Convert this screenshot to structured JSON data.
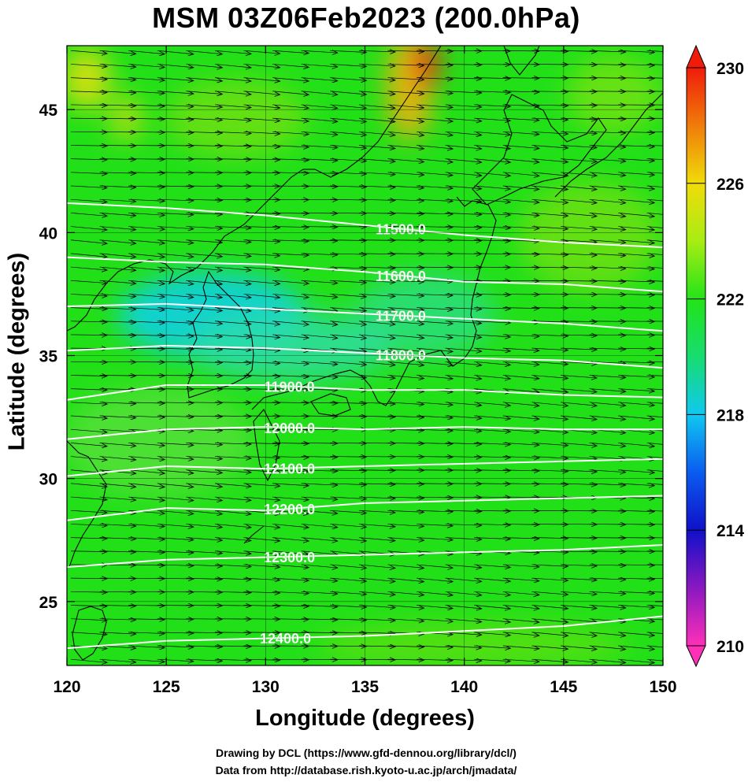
{
  "title": "MSM 03Z06Feb2023 (200.0hPa)",
  "xaxis": {
    "label": "Longitude (degrees)",
    "ticks": [
      120,
      125,
      130,
      135,
      140,
      145,
      150
    ],
    "range": [
      120,
      150
    ]
  },
  "yaxis": {
    "label": "Latitude  (degrees)",
    "ticks": [
      25,
      30,
      35,
      40,
      45
    ],
    "range": [
      22.4,
      47.6
    ]
  },
  "colorbar": {
    "ticks": [
      230,
      226,
      222,
      218,
      214,
      210
    ],
    "range": [
      210,
      230
    ],
    "colors": [
      "#ff30b8",
      "#8a18c0",
      "#1010c8",
      "#0a5cf0",
      "#10c8f0",
      "#18dc70",
      "#22e418",
      "#a8ec14",
      "#f0dc0a",
      "#f07c0a",
      "#f01c0a"
    ]
  },
  "contours": [
    {
      "label": "11500.0",
      "label_lon": 136.8,
      "pts": [
        [
          120,
          41.2
        ],
        [
          125,
          41.0
        ],
        [
          130,
          40.7
        ],
        [
          135,
          40.3
        ],
        [
          140,
          39.9
        ],
        [
          145,
          39.6
        ],
        [
          150,
          39.4
        ]
      ]
    },
    {
      "label": "11600.0",
      "label_lon": 136.8,
      "pts": [
        [
          120,
          39.0
        ],
        [
          125,
          38.8
        ],
        [
          130,
          38.7
        ],
        [
          135,
          38.4
        ],
        [
          140,
          38.0
        ],
        [
          145,
          37.9
        ],
        [
          150,
          37.6
        ]
      ]
    },
    {
      "label": "11700.0",
      "label_lon": 136.8,
      "pts": [
        [
          120,
          37.0
        ],
        [
          125,
          37.1
        ],
        [
          130,
          36.9
        ],
        [
          135,
          36.7
        ],
        [
          140,
          36.5
        ],
        [
          145,
          36.3
        ],
        [
          150,
          36.0
        ]
      ]
    },
    {
      "label": "11800.0",
      "label_lon": 136.8,
      "pts": [
        [
          120,
          35.2
        ],
        [
          125,
          35.4
        ],
        [
          130,
          35.3
        ],
        [
          135,
          35.1
        ],
        [
          140,
          34.9
        ],
        [
          145,
          34.8
        ],
        [
          150,
          34.5
        ]
      ]
    },
    {
      "label": "11900.0",
      "label_lon": 131.2,
      "pts": [
        [
          120,
          33.2
        ],
        [
          125,
          33.8
        ],
        [
          130,
          33.8
        ],
        [
          135,
          33.6
        ],
        [
          140,
          33.6
        ],
        [
          145,
          33.4
        ],
        [
          150,
          33.3
        ]
      ]
    },
    {
      "label": "12000.0",
      "label_lon": 131.2,
      "pts": [
        [
          120,
          31.6
        ],
        [
          125,
          32.0
        ],
        [
          130,
          32.1
        ],
        [
          135,
          32.0
        ],
        [
          140,
          32.1
        ],
        [
          145,
          32.0
        ],
        [
          150,
          32.0
        ]
      ]
    },
    {
      "label": "12100.0",
      "label_lon": 131.2,
      "pts": [
        [
          120,
          30.1
        ],
        [
          125,
          30.5
        ],
        [
          130,
          30.4
        ],
        [
          135,
          30.5
        ],
        [
          140,
          30.6
        ],
        [
          145,
          30.7
        ],
        [
          150,
          30.8
        ]
      ]
    },
    {
      "label": "12200.0",
      "label_lon": 131.2,
      "pts": [
        [
          120,
          28.3
        ],
        [
          125,
          28.8
        ],
        [
          130,
          28.7
        ],
        [
          135,
          29.0
        ],
        [
          140,
          29.1
        ],
        [
          145,
          29.2
        ],
        [
          150,
          29.3
        ]
      ]
    },
    {
      "label": "12300.0",
      "label_lon": 131.2,
      "pts": [
        [
          120,
          26.4
        ],
        [
          125,
          26.7
        ],
        [
          130,
          26.8
        ],
        [
          135,
          26.9
        ],
        [
          140,
          27.0
        ],
        [
          145,
          27.1
        ],
        [
          150,
          27.3
        ]
      ]
    },
    {
      "label": "12400.0",
      "label_lon": 131.0,
      "pts": [
        [
          120,
          23.1
        ],
        [
          125,
          23.4
        ],
        [
          130,
          23.5
        ],
        [
          135,
          23.6
        ],
        [
          140,
          23.8
        ],
        [
          145,
          24.0
        ],
        [
          150,
          24.4
        ]
      ]
    }
  ],
  "wind": {
    "mean_direction": "west-southwest"
  },
  "credits": [
    "Drawing by DCL (https://www.gfd-dennou.org/library/dcl/)",
    "Data from http://database.rish.kyoto-u.ac.jp/arch/jmadata/"
  ]
}
